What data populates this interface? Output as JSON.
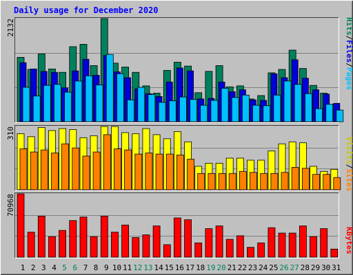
{
  "title": "Daily usage for December 2020",
  "colors": {
    "background": "#c0c0c0",
    "title": "#0000ff",
    "hits": "#00805c",
    "files": "#0000d8",
    "pages": "#00c0ff",
    "visits": "#ffff00",
    "sites": "#ff8000",
    "kbytes": "#ff0000",
    "day_weekday": "#000000",
    "day_weekend": "#00805c"
  },
  "chart_data": [
    {
      "type": "bar",
      "title": "Daily usage for December 2020",
      "ymax_label": "2132",
      "ylim": [
        0,
        2132
      ],
      "legend": [
        "Pages",
        "Files",
        "Hits"
      ],
      "categories": [
        "1",
        "2",
        "3",
        "4",
        "5",
        "6",
        "7",
        "8",
        "9",
        "10",
        "11",
        "12",
        "13",
        "14",
        "15",
        "16",
        "17",
        "18",
        "19",
        "20",
        "21",
        "22",
        "23",
        "24",
        "25",
        "26",
        "27",
        "28",
        "29",
        "30",
        "31"
      ],
      "series": [
        {
          "name": "Hits",
          "values": [
            1330,
            1080,
            1400,
            1090,
            1020,
            1550,
            1600,
            1160,
            2132,
            1210,
            1130,
            1020,
            740,
            590,
            1060,
            1230,
            1150,
            600,
            1040,
            1160,
            720,
            740,
            470,
            540,
            1010,
            1080,
            1480,
            1100,
            750,
            590,
            360
          ]
        },
        {
          "name": "Files",
          "values": [
            1220,
            1090,
            1040,
            1020,
            700,
            1050,
            1290,
            960,
            1370,
            1030,
            910,
            680,
            580,
            520,
            820,
            1110,
            1050,
            470,
            480,
            820,
            620,
            660,
            450,
            440,
            990,
            910,
            1280,
            900,
            660,
            570,
            380
          ]
        },
        {
          "name": "Pages",
          "values": [
            710,
            530,
            750,
            770,
            610,
            840,
            950,
            760,
            1390,
            990,
            450,
            710,
            560,
            400,
            430,
            510,
            460,
            340,
            440,
            690,
            500,
            550,
            340,
            330,
            550,
            840,
            770,
            580,
            270,
            360,
            240
          ]
        }
      ]
    },
    {
      "type": "bar",
      "ymax_label": "310",
      "ylim": [
        0,
        310
      ],
      "legend": [
        "Sites",
        "Visits"
      ],
      "categories": [
        "1",
        "2",
        "3",
        "4",
        "5",
        "6",
        "7",
        "8",
        "9",
        "10",
        "11",
        "12",
        "13",
        "14",
        "15",
        "16",
        "17",
        "18",
        "19",
        "20",
        "21",
        "22",
        "23",
        "24",
        "25",
        "26",
        "27",
        "28",
        "29",
        "30",
        "31"
      ],
      "series": [
        {
          "name": "Visits",
          "values": [
            275,
            260,
            305,
            290,
            300,
            295,
            255,
            265,
            320,
            310,
            280,
            275,
            300,
            270,
            250,
            285,
            235,
            115,
            130,
            130,
            155,
            155,
            145,
            145,
            190,
            225,
            235,
            230,
            115,
            90,
            100
          ]
        },
        {
          "name": "Sites",
          "values": [
            200,
            185,
            195,
            180,
            225,
            205,
            165,
            185,
            270,
            200,
            195,
            175,
            180,
            175,
            175,
            170,
            150,
            80,
            80,
            80,
            80,
            90,
            85,
            80,
            80,
            85,
            110,
            105,
            75,
            75,
            60
          ]
        }
      ]
    },
    {
      "type": "bar",
      "ymax_label": "70968",
      "ylim": [
        0,
        70968
      ],
      "legend": [
        "KBytes"
      ],
      "categories": [
        "1",
        "2",
        "3",
        "4",
        "5",
        "6",
        "7",
        "8",
        "9",
        "10",
        "11",
        "12",
        "13",
        "14",
        "15",
        "16",
        "17",
        "18",
        "19",
        "20",
        "21",
        "22",
        "23",
        "24",
        "25",
        "26",
        "27",
        "28",
        "29",
        "30",
        "31"
      ],
      "series": [
        {
          "name": "KBytes",
          "values": [
            73000,
            28000,
            46000,
            23000,
            30000,
            41000,
            45000,
            23000,
            46000,
            28000,
            36000,
            22000,
            25000,
            35000,
            14000,
            44000,
            42000,
            16000,
            32000,
            35000,
            20000,
            24000,
            11000,
            16000,
            33000,
            27000,
            27000,
            35000,
            23000,
            32000,
            9000
          ]
        }
      ]
    }
  ]
}
